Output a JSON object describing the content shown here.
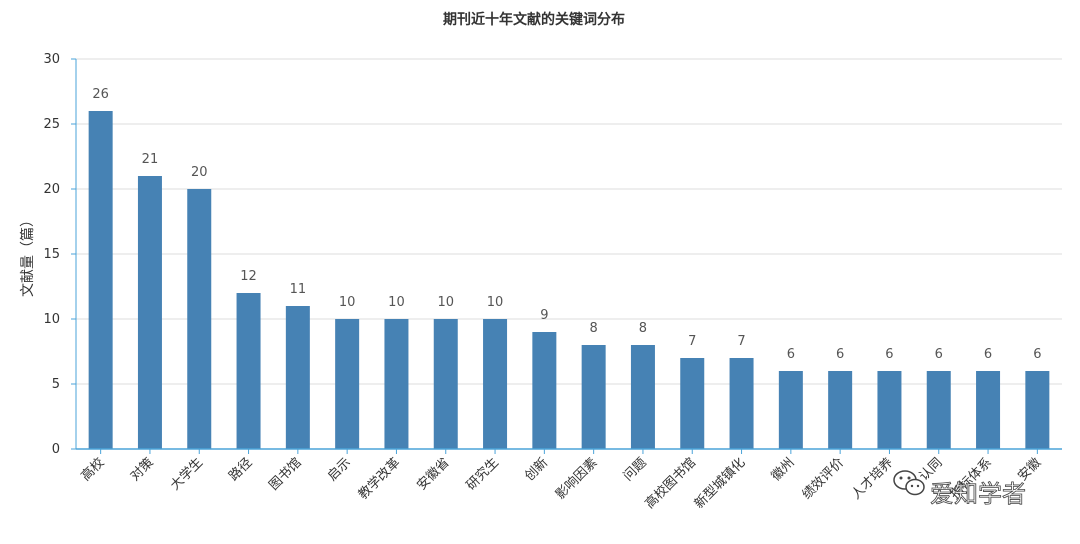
{
  "chart_data": {
    "type": "bar",
    "title": "期刊近十年文献的关键词分布",
    "xlabel": "",
    "ylabel": "文献量（篇）",
    "ylim": [
      0,
      30
    ],
    "yticks": [
      0,
      5,
      10,
      15,
      20,
      25,
      30
    ],
    "grid": true,
    "legend": "none",
    "bar_color": "#4682b4",
    "categories": [
      "高校",
      "对策",
      "大学生",
      "路径",
      "图书馆",
      "启示",
      "教学改革",
      "安徽省",
      "研究生",
      "创新",
      "影响因素",
      "问题",
      "高校图书馆",
      "新型城镇化",
      "徽州",
      "绩效评价",
      "人才培养",
      "认同",
      "指标体系",
      "安徽"
    ],
    "values": [
      26,
      21,
      20,
      12,
      11,
      10,
      10,
      10,
      10,
      9,
      8,
      8,
      7,
      7,
      6,
      6,
      6,
      6,
      6,
      6
    ]
  },
  "watermark": {
    "text": "爱知学者",
    "icon": "wechat-icon"
  }
}
